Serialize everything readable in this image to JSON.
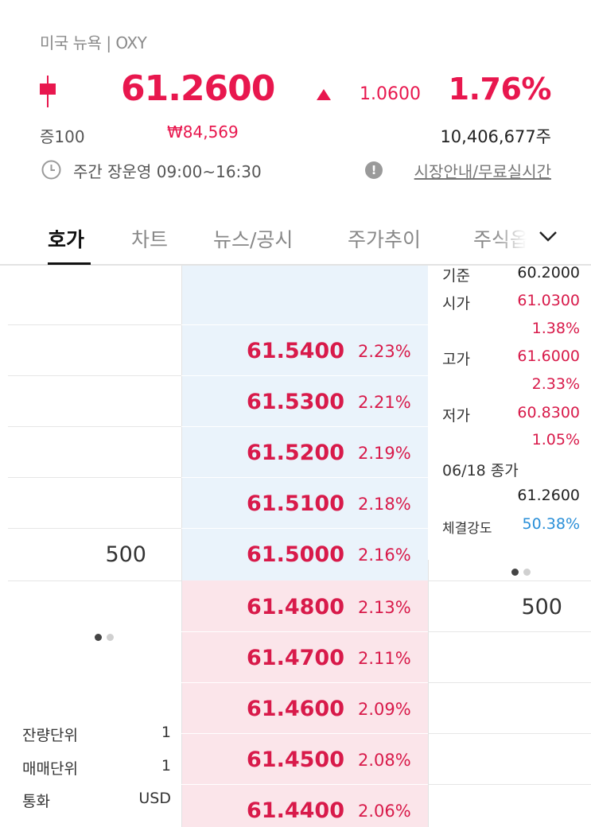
{
  "header": {
    "market": "미국 뉴욕 | OXY",
    "price": "61.2600",
    "change": "1.0600",
    "change_pct": "1.76%",
    "margin": "증100",
    "krw_price": "₩84,569",
    "volume": "10,406,677주",
    "hours": "주간 장운영 09:00~16:30",
    "market_info_link": "시장안내/무료실시간",
    "accent_color": "#e8174e"
  },
  "tabs": [
    {
      "label": "호가"
    },
    {
      "label": "차트"
    },
    {
      "label": "뉴스/공시"
    },
    {
      "label": "주가추이"
    },
    {
      "label": "주식옵"
    }
  ],
  "orderbook": {
    "sell": [
      {
        "price": "61.5400",
        "pct": "2.23%",
        "qty": ""
      },
      {
        "price": "61.5300",
        "pct": "2.21%",
        "qty": ""
      },
      {
        "price": "61.5200",
        "pct": "2.19%",
        "qty": ""
      },
      {
        "price": "61.5100",
        "pct": "2.18%",
        "qty": ""
      },
      {
        "price": "61.5000",
        "pct": "2.16%",
        "qty": "500"
      }
    ],
    "buy": [
      {
        "price": "61.4800",
        "pct": "2.13%",
        "qty": "500"
      },
      {
        "price": "61.4700",
        "pct": "2.11%",
        "qty": ""
      },
      {
        "price": "61.4600",
        "pct": "2.09%",
        "qty": ""
      },
      {
        "price": "61.4500",
        "pct": "2.08%",
        "qty": ""
      },
      {
        "price": "61.4400",
        "pct": "2.06%",
        "qty": ""
      }
    ]
  },
  "stats": {
    "base_label": "기준",
    "base_val": "60.2000",
    "open_label": "시가",
    "open_val": "61.0300",
    "open_pct": "1.38%",
    "high_label": "고가",
    "high_val": "61.6000",
    "high_pct": "2.33%",
    "low_label": "저가",
    "low_val": "60.8300",
    "low_pct": "1.05%",
    "close_label": "06/18 종가",
    "close_val": "61.2600",
    "strength_label": "체결강도",
    "strength_val": "50.38%"
  },
  "units": {
    "remain_label": "잔량단위",
    "remain_val": "1",
    "trade_label": "매매단위",
    "trade_val": "1",
    "currency_label": "통화",
    "currency_val": "USD"
  }
}
